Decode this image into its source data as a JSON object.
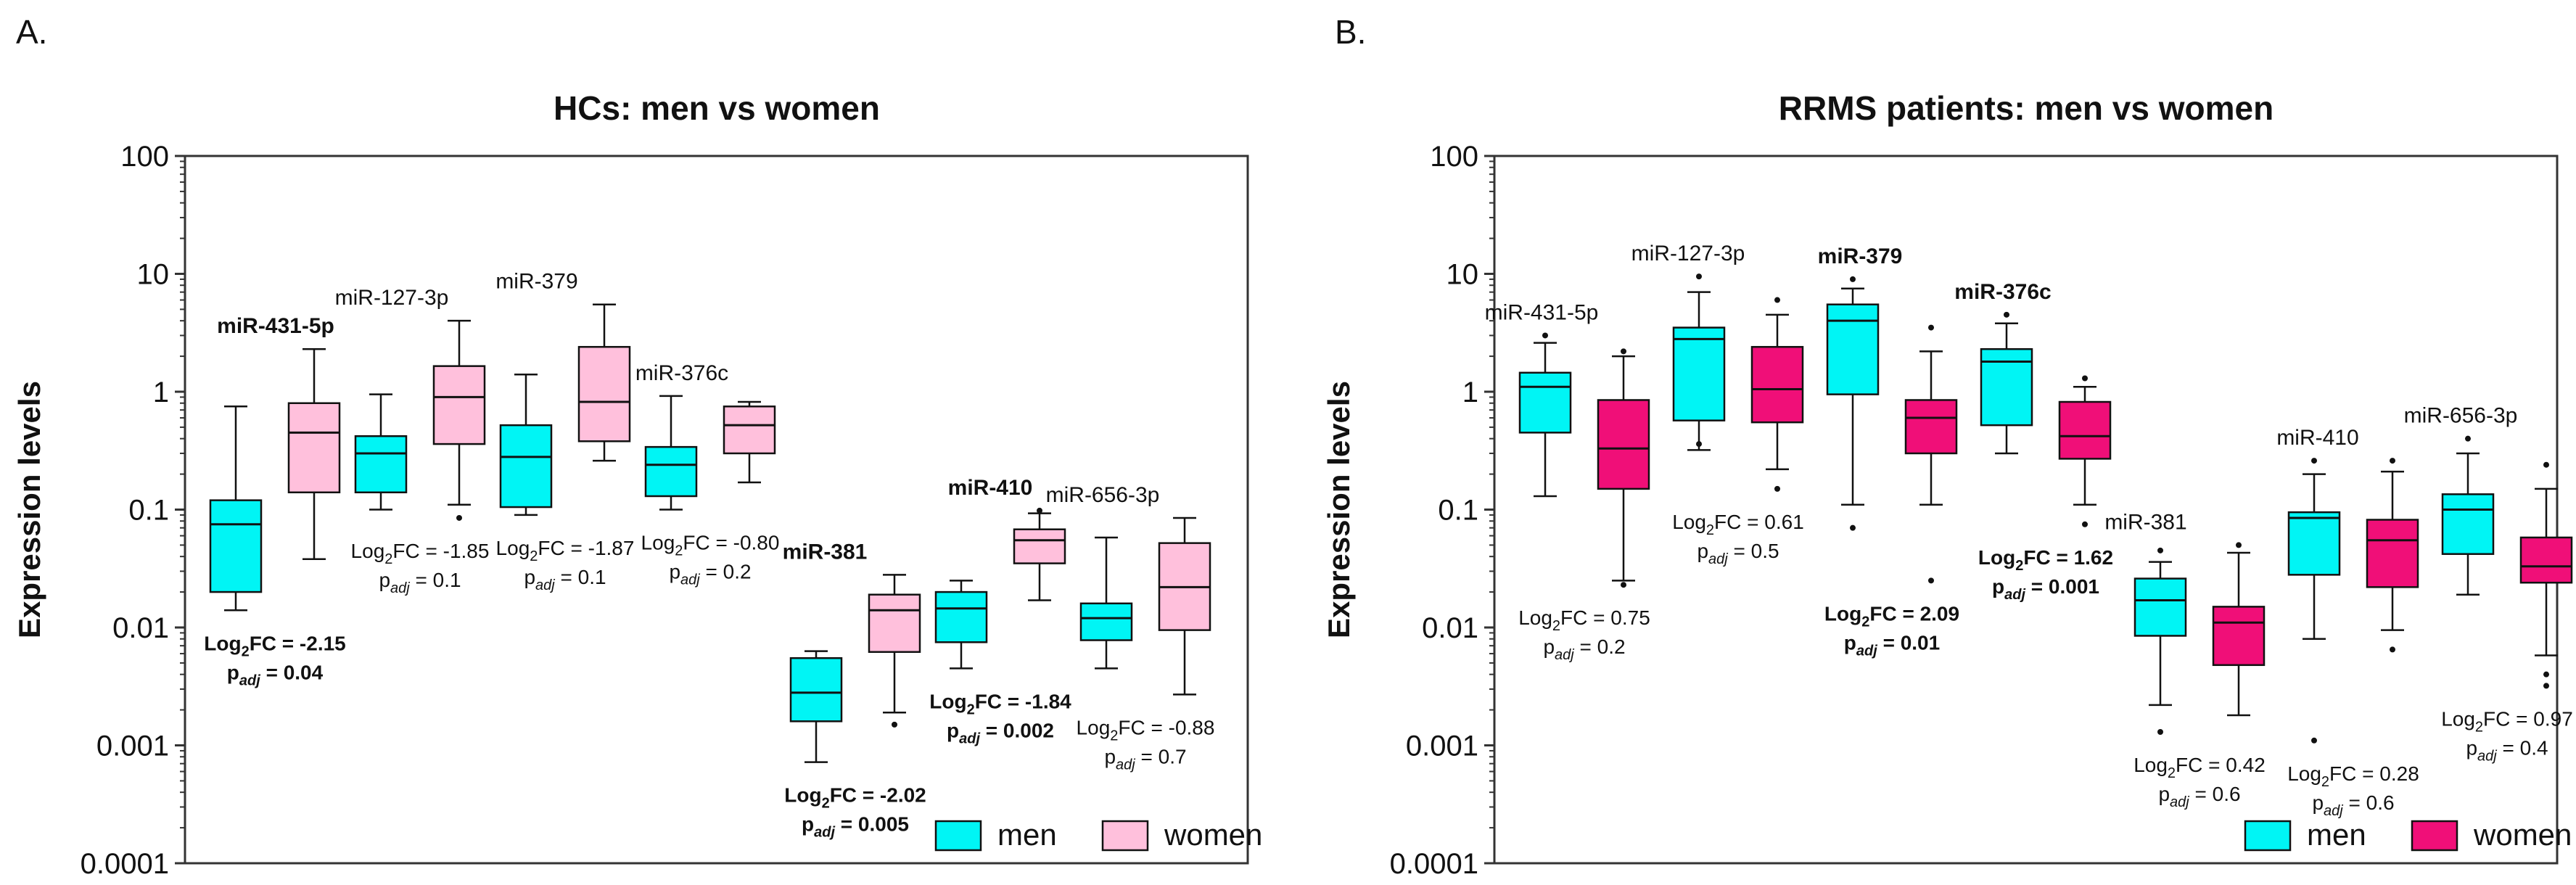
{
  "chart_data": [
    {
      "type": "box",
      "panel_label": "A.",
      "title": "HCs: men vs women",
      "ylabel": "Expression levels",
      "yscale": "log",
      "ylim": [
        0.0001,
        100
      ],
      "yticks": [
        "0.0001",
        "0.001",
        "0.01",
        "0.1",
        "1",
        "10",
        "100"
      ],
      "legend": {
        "position": "bottom-right",
        "entries": [
          "men",
          "women"
        ]
      },
      "colors": {
        "men": "#00f5f5",
        "women": "#ffc0dc"
      },
      "groups": [
        {
          "name": "miR-431-5p",
          "bold": true,
          "men": {
            "whislo": 0.014,
            "q1": 0.02,
            "med": 0.075,
            "q3": 0.12,
            "whishi": 0.75,
            "fliers": []
          },
          "women": {
            "whislo": 0.038,
            "q1": 0.14,
            "med": 0.45,
            "q3": 0.8,
            "whishi": 2.3,
            "fliers": []
          },
          "stat": {
            "fc_label": "Log",
            "fc_sub": "2",
            "fc_text": "FC = -2.15",
            "p_label": "p",
            "p_sub": "adj",
            "p_text": " = 0.04",
            "bold": true
          }
        },
        {
          "name": "miR-127-3p",
          "bold": false,
          "men": {
            "whislo": 0.1,
            "q1": 0.14,
            "med": 0.3,
            "q3": 0.42,
            "whishi": 0.95,
            "fliers": []
          },
          "women": {
            "whislo": 0.11,
            "q1": 0.36,
            "med": 0.9,
            "q3": 1.65,
            "whishi": 4.0,
            "fliers": [
              0.085
            ]
          },
          "stat": {
            "fc_label": "Log",
            "fc_sub": "2",
            "fc_text": "FC = -1.85",
            "p_label": "p",
            "p_sub": "adj",
            "p_text": " = 0.1",
            "bold": false
          }
        },
        {
          "name": "miR-379",
          "bold": false,
          "men": {
            "whislo": 0.09,
            "q1": 0.105,
            "med": 0.28,
            "q3": 0.52,
            "whishi": 1.4,
            "fliers": []
          },
          "women": {
            "whislo": 0.26,
            "q1": 0.38,
            "med": 0.82,
            "q3": 2.4,
            "whishi": 5.5,
            "fliers": []
          },
          "stat": {
            "fc_label": "Log",
            "fc_sub": "2",
            "fc_text": "FC = -1.87",
            "p_label": "p",
            "p_sub": "adj",
            "p_text": " = 0.1",
            "bold": false
          }
        },
        {
          "name": "miR-376c",
          "bold": false,
          "men": {
            "whislo": 0.1,
            "q1": 0.13,
            "med": 0.24,
            "q3": 0.34,
            "whishi": 0.92,
            "fliers": []
          },
          "women": {
            "whislo": 0.17,
            "q1": 0.3,
            "med": 0.52,
            "q3": 0.75,
            "whishi": 0.82,
            "fliers": []
          },
          "stat": {
            "fc_label": "Log",
            "fc_sub": "2",
            "fc_text": "FC = -0.80",
            "p_label": "p",
            "p_sub": "adj",
            "p_text": " = 0.2",
            "bold": false
          }
        },
        {
          "name": "miR-381",
          "bold": true,
          "men": {
            "whislo": 0.00072,
            "q1": 0.0016,
            "med": 0.0028,
            "q3": 0.0055,
            "whishi": 0.0063,
            "fliers": []
          },
          "women": {
            "whislo": 0.0019,
            "q1": 0.0062,
            "med": 0.014,
            "q3": 0.019,
            "whishi": 0.028,
            "fliers": [
              0.0015
            ]
          },
          "stat": {
            "fc_label": "Log",
            "fc_sub": "2",
            "fc_text": "FC = -2.02",
            "p_label": "p",
            "p_sub": "adj",
            "p_text": " = 0.005",
            "bold": true
          }
        },
        {
          "name": "miR-410",
          "bold": true,
          "men": {
            "whislo": 0.0045,
            "q1": 0.0075,
            "med": 0.0145,
            "q3": 0.02,
            "whishi": 0.025,
            "fliers": []
          },
          "women": {
            "whislo": 0.017,
            "q1": 0.035,
            "med": 0.055,
            "q3": 0.068,
            "whishi": 0.093,
            "fliers": [
              0.098
            ]
          },
          "stat": {
            "fc_label": "Log",
            "fc_sub": "2",
            "fc_text": "FC = -1.84",
            "p_label": "p",
            "p_sub": "adj",
            "p_text": " = 0.002",
            "bold": true
          }
        },
        {
          "name": "miR-656-3p",
          "bold": false,
          "men": {
            "whislo": 0.0045,
            "q1": 0.0078,
            "med": 0.012,
            "q3": 0.016,
            "whishi": 0.058,
            "fliers": []
          },
          "women": {
            "whislo": 0.0027,
            "q1": 0.0095,
            "med": 0.022,
            "q3": 0.052,
            "whishi": 0.085,
            "fliers": []
          },
          "stat": {
            "fc_label": "Log",
            "fc_sub": "2",
            "fc_text": "FC = -0.88",
            "p_label": "p",
            "p_sub": "adj",
            "p_text": " = 0.7",
            "bold": false
          }
        }
      ]
    },
    {
      "type": "box",
      "panel_label": "B.",
      "title": "RRMS patients: men vs women",
      "ylabel": "Expression levels",
      "yscale": "log",
      "ylim": [
        0.0001,
        100
      ],
      "yticks": [
        "0.0001",
        "0.001",
        "0.01",
        "0.1",
        "1",
        "10",
        "100"
      ],
      "legend": {
        "position": "bottom-right",
        "entries": [
          "men",
          "women"
        ]
      },
      "colors": {
        "men": "#00f5f5",
        "women": "#f00f78"
      },
      "groups": [
        {
          "name": "miR-431-5p",
          "bold": false,
          "men": {
            "whislo": 0.13,
            "q1": 0.45,
            "med": 1.1,
            "q3": 1.45,
            "whishi": 2.6,
            "fliers": [
              3.0
            ]
          },
          "women": {
            "whislo": 0.025,
            "q1": 0.15,
            "med": 0.33,
            "q3": 0.85,
            "whishi": 2.0,
            "fliers": [
              2.2,
              0.023
            ]
          },
          "stat": {
            "fc_label": "Log",
            "fc_sub": "2",
            "fc_text": "FC = 0.75",
            "p_label": "p",
            "p_sub": "adj",
            "p_text": " = 0.2",
            "bold": false
          }
        },
        {
          "name": "miR-127-3p",
          "bold": false,
          "men": {
            "whislo": 0.32,
            "q1": 0.57,
            "med": 2.8,
            "q3": 3.5,
            "whishi": 7.0,
            "fliers": [
              9.5,
              0.36
            ]
          },
          "women": {
            "whislo": 0.22,
            "q1": 0.55,
            "med": 1.05,
            "q3": 2.4,
            "whishi": 4.5,
            "fliers": [
              6.0,
              0.15
            ]
          },
          "stat": {
            "fc_label": "Log",
            "fc_sub": "2",
            "fc_text": "FC = 0.61",
            "p_label": "p",
            "p_sub": "adj",
            "p_text": " = 0.5",
            "bold": false
          }
        },
        {
          "name": "miR-379",
          "bold": true,
          "men": {
            "whislo": 0.11,
            "q1": 0.95,
            "med": 4.0,
            "q3": 5.5,
            "whishi": 7.5,
            "fliers": [
              9.0,
              0.07
            ]
          },
          "women": {
            "whislo": 0.11,
            "q1": 0.3,
            "med": 0.6,
            "q3": 0.85,
            "whishi": 2.2,
            "fliers": [
              3.5,
              0.025
            ]
          },
          "stat": {
            "fc_label": "Log",
            "fc_sub": "2",
            "fc_text": "FC = 2.09",
            "p_label": "p",
            "p_sub": "adj",
            "p_text": " = 0.01",
            "bold": true
          }
        },
        {
          "name": "miR-376c",
          "bold": true,
          "men": {
            "whislo": 0.3,
            "q1": 0.52,
            "med": 1.8,
            "q3": 2.3,
            "whishi": 3.8,
            "fliers": [
              4.5
            ]
          },
          "women": {
            "whislo": 0.11,
            "q1": 0.27,
            "med": 0.42,
            "q3": 0.82,
            "whishi": 1.1,
            "fliers": [
              1.3,
              0.075
            ]
          },
          "stat": {
            "fc_label": "Log",
            "fc_sub": "2",
            "fc_text": "FC = 1.62",
            "p_label": "p",
            "p_sub": "adj",
            "p_text": " = 0.001",
            "bold": true
          }
        },
        {
          "name": "miR-381",
          "bold": false,
          "men": {
            "whislo": 0.0022,
            "q1": 0.0085,
            "med": 0.017,
            "q3": 0.026,
            "whishi": 0.036,
            "fliers": [
              0.045,
              0.0013
            ]
          },
          "women": {
            "whislo": 0.0018,
            "q1": 0.0048,
            "med": 0.011,
            "q3": 0.015,
            "whishi": 0.043,
            "fliers": [
              0.05
            ]
          },
          "stat": {
            "fc_label": "Log",
            "fc_sub": "2",
            "fc_text": "FC = 0.42",
            "p_label": "p",
            "p_sub": "adj",
            "p_text": " = 0.6",
            "bold": false
          }
        },
        {
          "name": "miR-410",
          "bold": false,
          "men": {
            "whislo": 0.008,
            "q1": 0.028,
            "med": 0.085,
            "q3": 0.095,
            "whishi": 0.2,
            "fliers": [
              0.26,
              0.0011
            ]
          },
          "women": {
            "whislo": 0.0095,
            "q1": 0.022,
            "med": 0.055,
            "q3": 0.082,
            "whishi": 0.21,
            "fliers": [
              0.26,
              0.0065
            ]
          },
          "stat": {
            "fc_label": "Log",
            "fc_sub": "2",
            "fc_text": "FC = 0.28",
            "p_label": "p",
            "p_sub": "adj",
            "p_text": " = 0.6",
            "bold": false
          }
        },
        {
          "name": "miR-656-3p",
          "bold": false,
          "men": {
            "whislo": 0.019,
            "q1": 0.042,
            "med": 0.1,
            "q3": 0.135,
            "whishi": 0.3,
            "fliers": [
              0.4
            ]
          },
          "women": {
            "whislo": 0.0058,
            "q1": 0.024,
            "med": 0.033,
            "q3": 0.058,
            "whishi": 0.15,
            "fliers": [
              0.24,
              0.004,
              0.0032
            ]
          },
          "stat": {
            "fc_label": "Log",
            "fc_sub": "2",
            "fc_text": "FC = 0.97",
            "p_label": "p",
            "p_sub": "adj",
            "p_text": " = 0.4",
            "bold": false
          }
        }
      ]
    }
  ]
}
